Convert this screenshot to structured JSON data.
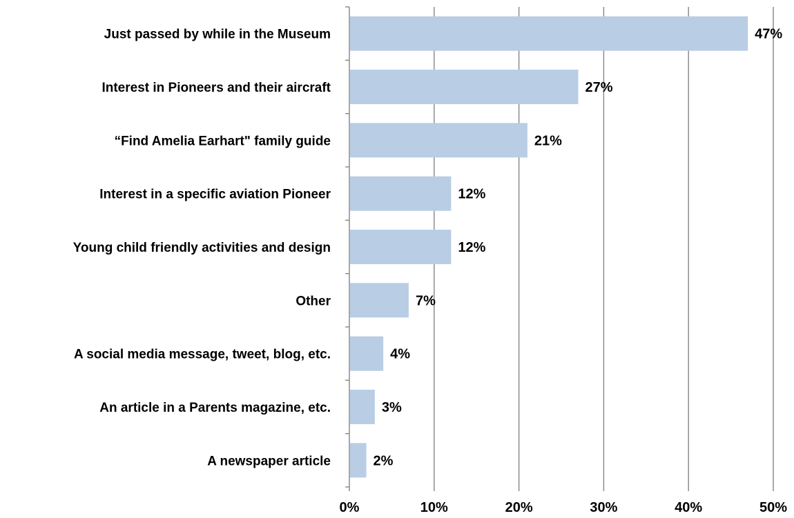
{
  "chart_data": {
    "type": "bar",
    "orientation": "horizontal",
    "title": "",
    "xlabel": "",
    "ylabel": "",
    "xlim": [
      0,
      50
    ],
    "x_ticks": [
      0,
      10,
      20,
      30,
      40,
      50
    ],
    "x_tick_labels": [
      "0%",
      "10%",
      "20%",
      "30%",
      "40%",
      "50%"
    ],
    "grid": "vertical",
    "legend": "none",
    "categories": [
      "Just passed by while in the Museum",
      "Interest in Pioneers and their aircraft",
      "“Find Amelia Earhart\" family guide",
      "Interest in a specific aviation Pioneer",
      "Young child friendly activities and design",
      "Other",
      "A social media message, tweet, blog, etc.",
      "An article in a Parents magazine, etc.",
      "A newspaper article"
    ],
    "values": [
      47,
      27,
      21,
      12,
      12,
      7,
      4,
      3,
      2
    ],
    "value_labels": [
      "47%",
      "27%",
      "21%",
      "12%",
      "12%",
      "7%",
      "4%",
      "3%",
      "2%"
    ],
    "bar_color": "#b9cde5",
    "gridline_color": "#8c8c8c"
  }
}
